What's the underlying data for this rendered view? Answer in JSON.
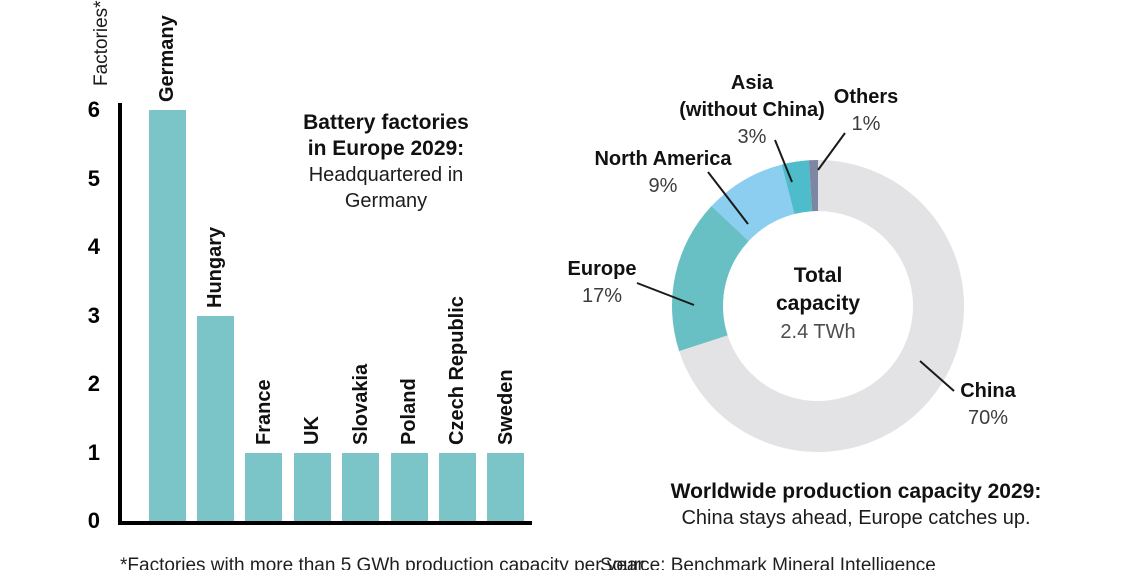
{
  "chart_data": [
    {
      "type": "bar",
      "title_lines": [
        "Battery factories",
        "in Europe 2029:"
      ],
      "subtitle_lines": [
        "Headquartered in",
        "Germany"
      ],
      "ylabel": "Factories*",
      "categories": [
        "Germany",
        "Hungary",
        "France",
        "UK",
        "Slovakia",
        "Poland",
        "Czech Republic",
        "Sweden"
      ],
      "values": [
        6,
        3,
        1,
        1,
        1,
        1,
        1,
        1
      ],
      "yticks": [
        0,
        1,
        2,
        3,
        4,
        5,
        6
      ],
      "ylim": [
        0,
        6
      ],
      "grid": false,
      "bar_color": "#7BC5C8"
    },
    {
      "type": "pie",
      "subtype": "donut",
      "title": "Worldwide production capacity 2029:",
      "subtitle": "China stays ahead, Europe catches up.",
      "center_label_lines": [
        "Total",
        "capacity"
      ],
      "center_value": "2.4 TWh",
      "direction": "clockwise",
      "start_angle": "12 o'clock",
      "segments": [
        {
          "label": "China",
          "pct": 70,
          "pct_text": "70%",
          "color": "#E3E3E5"
        },
        {
          "label": "Europe",
          "pct": 17,
          "pct_text": "17%",
          "color": "#69C0C4"
        },
        {
          "label": "North America",
          "pct": 9,
          "pct_text": "9%",
          "color": "#8CCEF0"
        },
        {
          "label": "Asia (without China)",
          "label_lines": [
            "Asia",
            "(without China)"
          ],
          "pct": 3,
          "pct_text": "3%",
          "color": "#4FBCCB"
        },
        {
          "label": "Others",
          "pct": 1,
          "pct_text": "1%",
          "color": "#7C87A4"
        }
      ]
    }
  ],
  "footnote": "*Factories with more than 5 GWh production capacity per year.",
  "source": "Source: Benchmark Mineral Intelligence",
  "colors": {
    "bar_teal": "#7BC5C8",
    "axis_black": "#000000",
    "leader_line": "#1a1a1a"
  }
}
